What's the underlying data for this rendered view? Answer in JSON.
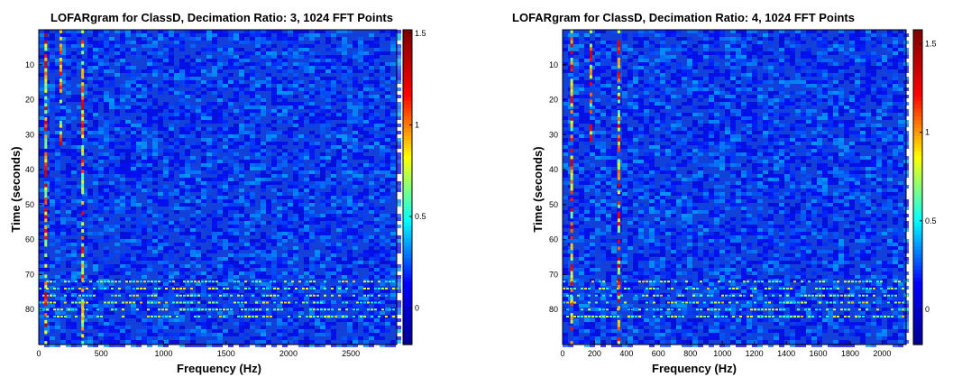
{
  "colors": {
    "background": "#00008f",
    "field_base": "#1240d8",
    "colormap": [
      "#00008f",
      "#0000ff",
      "#00ffff",
      "#ffff00",
      "#ff0000",
      "#800000"
    ]
  },
  "chart_data": [
    {
      "type": "heatmap",
      "title": "LOFARgram for ClassD, Decimation Ratio: 3, 1024 FFT Points",
      "xlabel": "Frequency (Hz)",
      "ylabel": "Time (seconds)",
      "xlim": [
        0,
        2867
      ],
      "ylim": [
        0,
        90
      ],
      "y_reversed": true,
      "x_ticks": [
        0,
        500,
        1000,
        1500,
        2000,
        2500
      ],
      "y_ticks": [
        10,
        20,
        30,
        40,
        50,
        60,
        70,
        80
      ],
      "colorbar": {
        "ticks": [
          0,
          0.5,
          1,
          1.5
        ],
        "clim": [
          -0.2,
          1.52
        ]
      },
      "features": {
        "strong_lines_hz": [
          60,
          180,
          355
        ],
        "harmonic_band_rows_s": [
          72,
          74,
          76,
          78,
          80,
          82
        ],
        "harmonic_band_xmax_hz": 2867,
        "early_energy_until_s": 33
      }
    },
    {
      "type": "heatmap",
      "title": "LOFARgram for ClassD, Decimation Ratio: 4, 1024 FFT Points",
      "xlabel": "Frequency (Hz)",
      "ylabel": "Time (seconds)",
      "xlim": [
        0,
        2150
      ],
      "ylim": [
        0,
        90
      ],
      "y_reversed": true,
      "x_ticks": [
        0,
        200,
        400,
        600,
        800,
        1000,
        1200,
        1400,
        1600,
        1800,
        2000
      ],
      "y_ticks": [
        10,
        20,
        30,
        40,
        50,
        60,
        70,
        80
      ],
      "colorbar": {
        "ticks": [
          0,
          0.5,
          1,
          1.5
        ],
        "clim": [
          -0.2,
          1.58
        ]
      },
      "features": {
        "strong_lines_hz": [
          60,
          180,
          355
        ],
        "harmonic_band_rows_s": [
          72,
          74,
          76,
          78,
          80,
          82
        ],
        "harmonic_band_xmax_hz": 2150,
        "early_energy_until_s": 33
      }
    }
  ]
}
